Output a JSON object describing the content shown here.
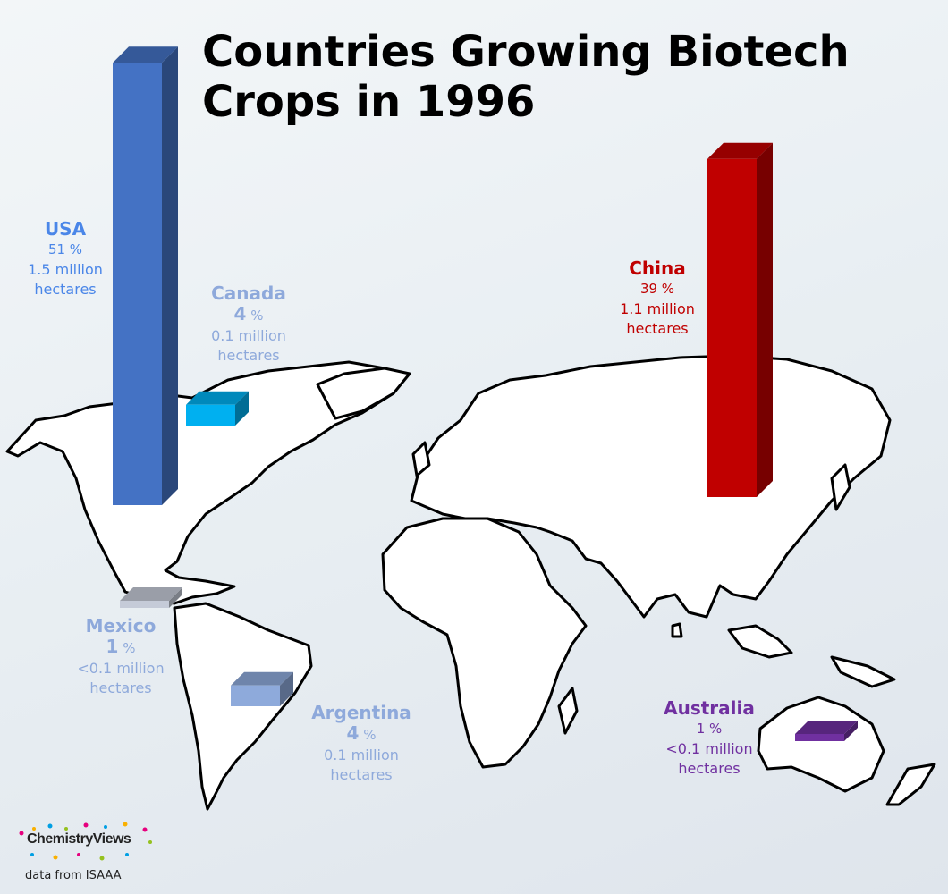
{
  "chart_data": {
    "type": "bar",
    "title": "Countries Growing Biotech Crops in 1996",
    "unit": "%",
    "categories": [
      "USA",
      "Canada",
      "Mexico",
      "Argentina",
      "China",
      "Australia"
    ],
    "values": [
      51,
      4,
      1,
      4,
      39,
      1
    ],
    "bars": [
      {
        "country": "USA",
        "percent": 51,
        "percent_text": "51 %",
        "area_text": "1.5 million",
        "area_unit": "hectares",
        "color": "#4472c4",
        "emphasis": false
      },
      {
        "country": "Canada",
        "percent": 4,
        "percent_text": "4",
        "area_text": "0.1 million",
        "area_unit": "hectares",
        "color": "#00b0f0",
        "emphasis": true
      },
      {
        "country": "Mexico",
        "percent": 1,
        "percent_text": "1",
        "area_text": "<0.1 million",
        "area_unit": "hectares",
        "color": "#c5cbd8",
        "emphasis": true
      },
      {
        "country": "Argentina",
        "percent": 4,
        "percent_text": "4",
        "area_text": "0.1 million",
        "area_unit": "hectares",
        "color": "#8eaadb",
        "emphasis": true
      },
      {
        "country": "China",
        "percent": 39,
        "percent_text": "39 %",
        "area_text": "1.1 million",
        "area_unit": "hectares",
        "color": "#c00000",
        "emphasis": false
      },
      {
        "country": "Australia",
        "percent": 1,
        "percent_text": "1 %",
        "area_text": "<0.1 million",
        "area_unit": "hectares",
        "color": "#7030a0",
        "emphasis": false
      }
    ],
    "label_colors": {
      "USA": "#4a86e8",
      "Canada": "#8ea9db",
      "Mexico": "#8ea9db",
      "Argentina": "#8ea9db",
      "China": "#c00000",
      "Australia": "#7030a0"
    }
  },
  "brand": {
    "name": "ChemistryViews"
  },
  "source_text": "data from ISAAA"
}
